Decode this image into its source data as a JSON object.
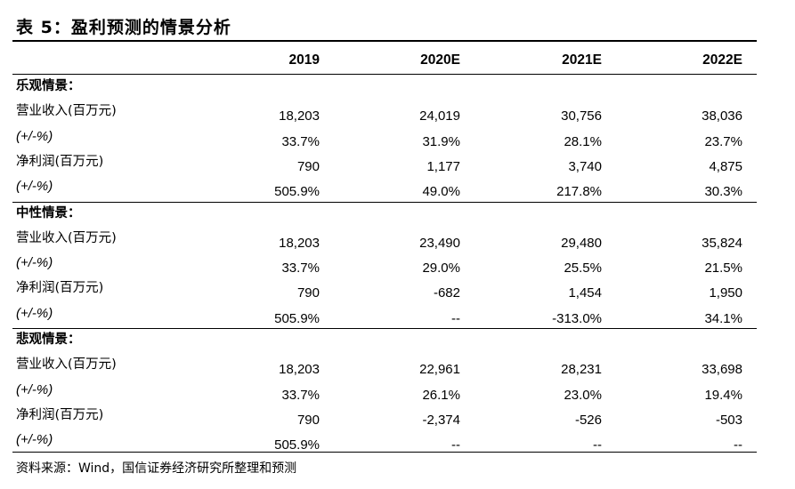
{
  "title": "表 5：盈利预测的情景分析",
  "columns": [
    "2019",
    "2020E",
    "2021E",
    "2022E"
  ],
  "sections": [
    {
      "name": "乐观情景：",
      "rows": [
        {
          "label": "营业收入(百万元)",
          "italic": false,
          "values": [
            "18,203",
            "24,019",
            "30,756",
            "38,036"
          ]
        },
        {
          "label": "(+/-%)",
          "italic": true,
          "values": [
            "33.7%",
            "31.9%",
            "28.1%",
            "23.7%"
          ]
        },
        {
          "label": "净利润(百万元)",
          "italic": false,
          "values": [
            "790",
            "1,177",
            "3,740",
            "4,875"
          ]
        },
        {
          "label": "(+/-%)",
          "italic": true,
          "values": [
            "505.9%",
            "49.0%",
            "217.8%",
            "30.3%"
          ]
        }
      ]
    },
    {
      "name": "中性情景：",
      "rows": [
        {
          "label": "营业收入(百万元)",
          "italic": false,
          "values": [
            "18,203",
            "23,490",
            "29,480",
            "35,824"
          ]
        },
        {
          "label": "(+/-%)",
          "italic": true,
          "values": [
            "33.7%",
            "29.0%",
            "25.5%",
            "21.5%"
          ]
        },
        {
          "label": "净利润(百万元)",
          "italic": false,
          "values": [
            "790",
            "-682",
            "1,454",
            "1,950"
          ]
        },
        {
          "label": "(+/-%)",
          "italic": true,
          "values": [
            "505.9%",
            "--",
            "-313.0%",
            "34.1%"
          ]
        }
      ]
    },
    {
      "name": "悲观情景：",
      "rows": [
        {
          "label": "营业收入(百万元)",
          "italic": false,
          "values": [
            "18,203",
            "22,961",
            "28,231",
            "33,698"
          ]
        },
        {
          "label": "(+/-%)",
          "italic": true,
          "values": [
            "33.7%",
            "26.1%",
            "23.0%",
            "19.4%"
          ]
        },
        {
          "label": "净利润(百万元)",
          "italic": false,
          "values": [
            "790",
            "-2,374",
            "-526",
            "-503"
          ]
        },
        {
          "label": "(+/-%)",
          "italic": true,
          "values": [
            "505.9%",
            "--",
            "--",
            "--"
          ]
        }
      ]
    }
  ],
  "source": "资料来源：Wind，国信证券经济研究所整理和预测"
}
